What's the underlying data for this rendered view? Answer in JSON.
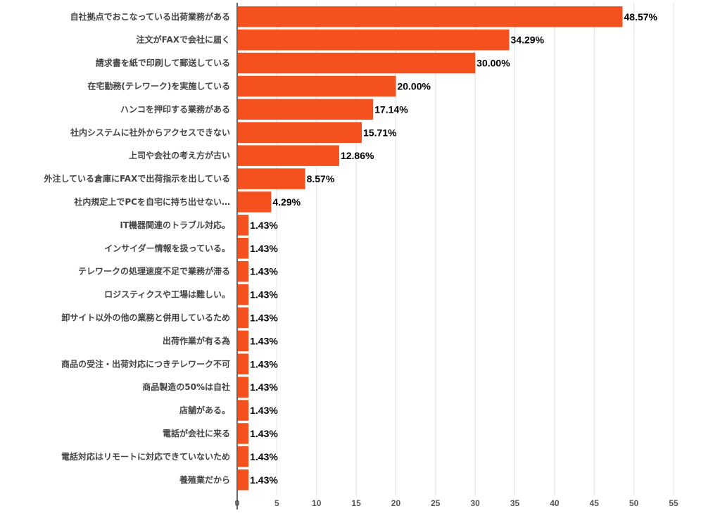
{
  "chart_data": {
    "type": "bar",
    "orientation": "horizontal",
    "title": "",
    "xlabel": "",
    "ylabel": "",
    "xlim": [
      0,
      55
    ],
    "xticks": [
      0,
      5,
      10,
      15,
      20,
      25,
      30,
      35,
      40,
      45,
      50,
      55
    ],
    "grid": true,
    "bar_color": "#f4511e",
    "categories": [
      "自社拠点でおこなっている出荷業務がある",
      "注文がFAXで会社に届く",
      "請求書を紙で印刷して郵送している",
      "在宅勤務(テレワーク)を実施している",
      "ハンコを押印する業務がある",
      "社内システムに社外からアクセスできない",
      "上司や会社の考え方が古い",
      "外注している倉庫にFAXで出荷指示を出している",
      "社内規定上でPCを自宅に持ち出せない…",
      "IT機器関連のトラブル対応。",
      "インサイダー情報を扱っている。",
      "テレワークの処理速度不足で業務が滞る",
      "ロジスティクスや工場は難しい。",
      "卸サイト以外の他の業務と併用しているため",
      "出荷作業が有る為",
      "商品の受注・出荷対応につきテレワーク不可",
      "商品製造の50%は自社",
      "店舗がある。",
      "電話が会社に来る",
      "電話対応はリモートに対応できていないため",
      "養殖業だから"
    ],
    "values": [
      48.57,
      34.29,
      30.0,
      20.0,
      17.14,
      15.71,
      12.86,
      8.57,
      4.29,
      1.43,
      1.43,
      1.43,
      1.43,
      1.43,
      1.43,
      1.43,
      1.43,
      1.43,
      1.43,
      1.43,
      1.43
    ],
    "value_labels": [
      "48.57%",
      "34.29%",
      "30.00%",
      "20.00%",
      "17.14%",
      "15.71%",
      "12.86%",
      "8.57%",
      "4.29%",
      "1.43%",
      "1.43%",
      "1.43%",
      "1.43%",
      "1.43%",
      "1.43%",
      "1.43%",
      "1.43%",
      "1.43%",
      "1.43%",
      "1.43%",
      "1.43%"
    ]
  }
}
